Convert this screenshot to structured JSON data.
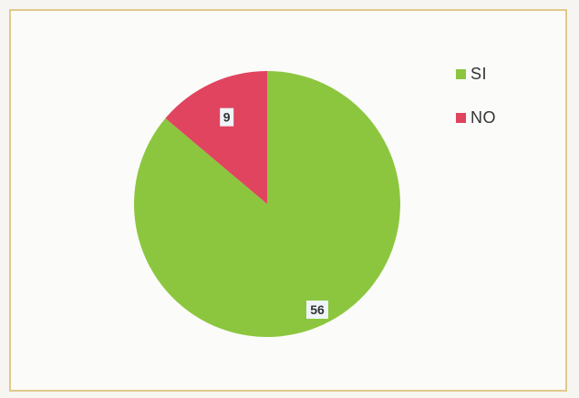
{
  "chart_data": {
    "type": "pie",
    "categories": [
      "SI",
      "NO"
    ],
    "values": [
      56,
      9
    ],
    "colors": [
      "#8cc63f",
      "#e0445f"
    ],
    "data_labels": [
      "56",
      "9"
    ],
    "legend_position": "top-right"
  }
}
